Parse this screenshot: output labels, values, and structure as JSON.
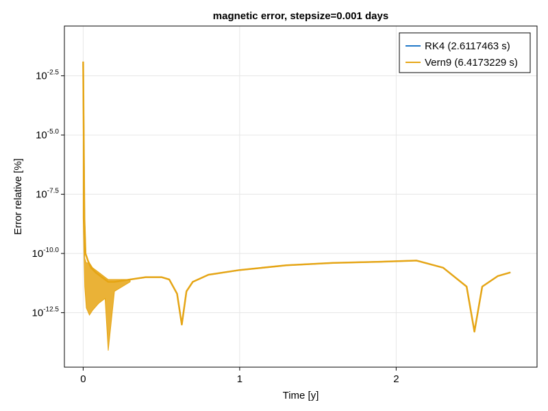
{
  "chart_data": {
    "type": "line",
    "title": "magnetic error, stepsize=0.001 days",
    "xlabel": "Time [y]",
    "ylabel": "Error relative [%]",
    "xlim": [
      -0.12,
      2.9
    ],
    "ylim_log10": [
      -14.8,
      -0.4
    ],
    "yscale": "log10",
    "x_ticks": [
      0,
      1,
      2
    ],
    "x_tick_labels": [
      "0",
      "1",
      "2"
    ],
    "y_ticks_log10": [
      -12.5,
      -10.0,
      -7.5,
      -5.0,
      -2.5
    ],
    "y_tick_bases": [
      "10",
      "10",
      "10",
      "10",
      "10"
    ],
    "y_tick_exponents": [
      "-12.5",
      "-10.0",
      "-7.5",
      "-5.0",
      "-2.5"
    ],
    "grid": true,
    "legend_position": "top-right",
    "series": [
      {
        "name": "RK4 (2.6117463 s)",
        "color": "#1f78c8",
        "x": [
          0.0,
          0.003,
          0.008,
          0.015,
          0.03,
          0.05,
          0.08,
          0.12,
          0.16,
          0.2,
          0.3,
          0.4,
          0.5,
          0.55,
          0.6,
          0.63,
          0.66,
          0.7,
          0.8,
          1.0,
          1.3,
          1.6,
          1.9,
          2.13,
          2.3,
          2.45,
          2.5,
          2.55,
          2.65,
          2.73
        ],
        "y_log10": [
          -2.0,
          -4.5,
          -8.5,
          -10.0,
          -10.3,
          -10.6,
          -10.8,
          -11.0,
          -11.2,
          -11.2,
          -11.1,
          -11.0,
          -11.0,
          -11.1,
          -11.7,
          -13.0,
          -11.6,
          -11.2,
          -10.9,
          -10.7,
          -10.5,
          -10.4,
          -10.35,
          -10.3,
          -10.6,
          -11.4,
          -13.3,
          -11.4,
          -10.95,
          -10.8
        ]
      },
      {
        "name": "Vern9 (6.4173229 s)",
        "color": "#e6a514",
        "x": [
          0.0,
          0.003,
          0.008,
          0.015,
          0.03,
          0.05,
          0.08,
          0.12,
          0.16,
          0.2,
          0.3,
          0.4,
          0.5,
          0.55,
          0.6,
          0.63,
          0.66,
          0.7,
          0.8,
          1.0,
          1.3,
          1.6,
          1.9,
          2.13,
          2.3,
          2.45,
          2.5,
          2.55,
          2.65,
          2.73
        ],
        "y_log10": [
          -1.9,
          -4.5,
          -8.5,
          -10.0,
          -10.3,
          -10.6,
          -10.8,
          -11.0,
          -11.2,
          -11.2,
          -11.1,
          -11.0,
          -11.0,
          -11.1,
          -11.7,
          -13.0,
          -11.6,
          -11.2,
          -10.9,
          -10.7,
          -10.5,
          -10.4,
          -10.35,
          -10.3,
          -10.6,
          -11.4,
          -13.3,
          -11.4,
          -10.95,
          -10.8
        ]
      }
    ],
    "band": {
      "x": [
        0.0,
        0.01,
        0.02,
        0.04,
        0.06,
        0.1,
        0.14,
        0.16,
        0.2,
        0.3
      ],
      "y_low_log10": [
        -8.5,
        -11.4,
        -12.3,
        -12.6,
        -12.4,
        -12.1,
        -11.9,
        -14.1,
        -11.6,
        -11.2
      ],
      "y_high_log10": [
        -2.0,
        -10.2,
        -10.4,
        -10.4,
        -10.6,
        -10.8,
        -11.0,
        -11.1,
        -11.1,
        -11.1
      ]
    }
  }
}
